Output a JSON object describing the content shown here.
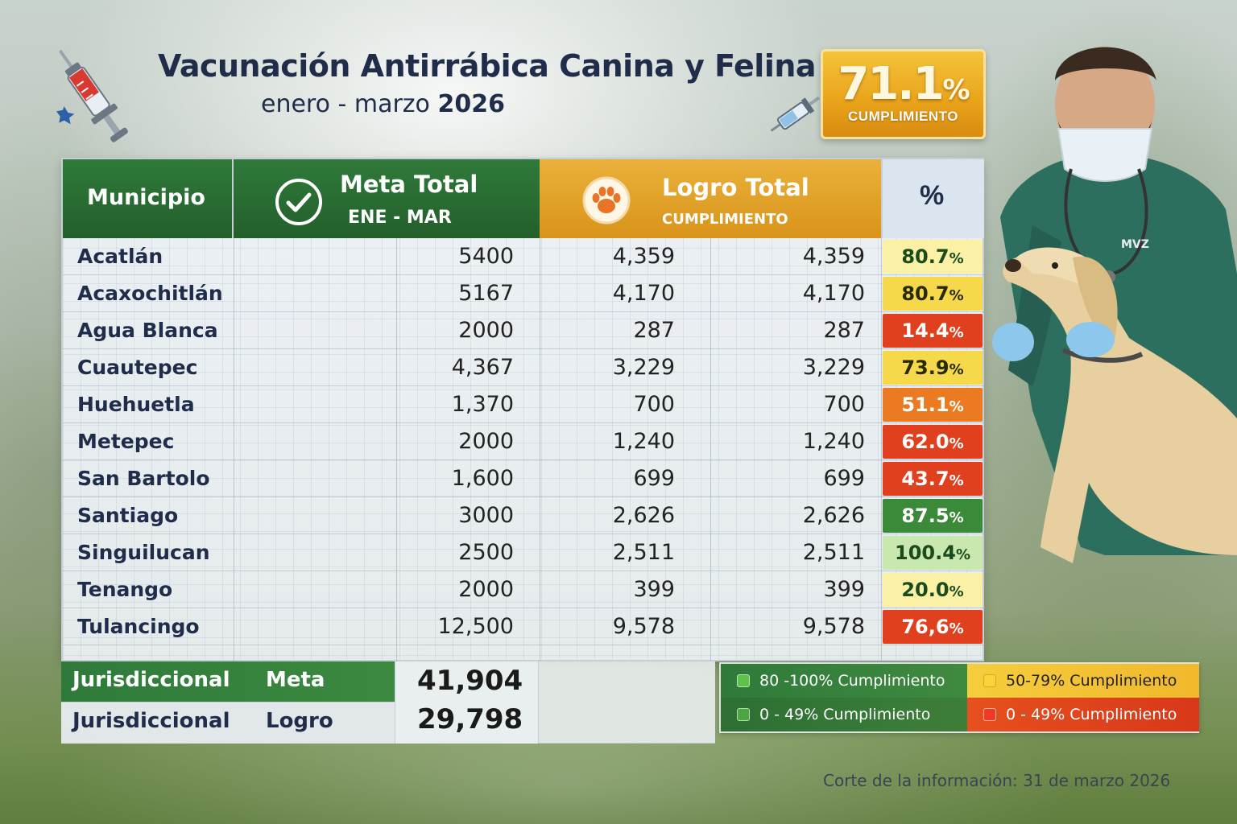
{
  "title": "Vacunación Antirrábica Canina y Felina",
  "subtitle_prefix": "enero - marzo",
  "subtitle_year": "2026",
  "kpi": {
    "value": "71.1",
    "unit": "%",
    "label": "CUMPLIMIENTO"
  },
  "headers": {
    "municipio": "Municipio",
    "meta_title": "Meta Total",
    "meta_sub": "ENE - MAR",
    "logro_title": "Logro Total",
    "logro_sub": "CUMPLIMIENTO",
    "pct": "%"
  },
  "rows": [
    {
      "municipio": "Acatlán",
      "meta": "5400",
      "logro_a": "4,359",
      "logro_b": "4,359",
      "pct": "80.7",
      "status": "light-yellow"
    },
    {
      "municipio": "Acaxochitlán",
      "meta": "5167",
      "logro_a": "4,170",
      "logro_b": "4,170",
      "pct": "80.7",
      "status": "yellow"
    },
    {
      "municipio": "Agua Blanca",
      "meta": "2000",
      "logro_a": "287",
      "logro_b": "287",
      "pct": "14.4",
      "status": "red"
    },
    {
      "municipio": "Cuautepec",
      "meta": "4,367",
      "logro_a": "3,229",
      "logro_b": "3,229",
      "pct": "73.9",
      "status": "yellow"
    },
    {
      "municipio": "Huehuetla",
      "meta": "1,370",
      "logro_a": "700",
      "logro_b": "700",
      "pct": "51.1",
      "status": "orange"
    },
    {
      "municipio": "Metepec",
      "meta": "2000",
      "logro_a": "1,240",
      "logro_b": "1,240",
      "pct": "62.0",
      "status": "red"
    },
    {
      "municipio": "San Bartolo",
      "meta": "1,600",
      "logro_a": "699",
      "logro_b": "699",
      "pct": "43.7",
      "status": "red"
    },
    {
      "municipio": "Santiago",
      "meta": "3000",
      "logro_a": "2,626",
      "logro_b": "2,626",
      "pct": "87.5",
      "status": "green"
    },
    {
      "municipio": "Singuilucan",
      "meta": "2500",
      "logro_a": "2,511",
      "logro_b": "2,511",
      "pct": "100.4",
      "status": "light-green"
    },
    {
      "municipio": "Tenango",
      "meta": "2000",
      "logro_a": "399",
      "logro_b": "399",
      "pct": "20.0",
      "status": "light-yellow"
    },
    {
      "municipio": "Tulancingo",
      "meta": "12,500",
      "logro_a": "9,578",
      "logro_b": "9,578",
      "pct": "76,6",
      "status": "red"
    }
  ],
  "pct_symbol": "%",
  "footer": {
    "meta_label": "Jurisdiccional",
    "meta_key": "Meta",
    "meta_value": "41,904",
    "logro_label": "Jurisdiccional",
    "logro_key": "Logro",
    "logro_value": "29,798"
  },
  "legend": [
    {
      "label": "80 -100% Cumplimiento",
      "color": "#4caf3f"
    },
    {
      "label": "50-79% Cumplimiento",
      "color": "#f2c230"
    },
    {
      "label": "0 - 49% Cumplimiento",
      "color": "#3f9a3a"
    },
    {
      "label": "0 - 49% Cumplimiento",
      "color": "#e53a1e"
    }
  ],
  "vet_badge": "MVZ",
  "source_note": "Corte de la información: 31 de marzo 2026",
  "colors": {
    "green-header": "#2f7a3a",
    "orange-header": "#e0a025",
    "green": "#3b8a3a",
    "light-green": "#c9e8b0",
    "yellow": "#f5d94a",
    "light-yellow": "#fbf1a6",
    "orange": "#ec7a22",
    "red": "#e0401e"
  },
  "chart_data": {
    "type": "table",
    "title": "Vacunación Antirrábica Canina y Felina",
    "subtitle": "enero - marzo 2026",
    "columns": [
      "Municipio",
      "Meta Total ENE - MAR",
      "Logro Total",
      "Logro Total",
      "%"
    ],
    "categories": [
      "Acatlán",
      "Acaxochitlán",
      "Agua Blanca",
      "Cuautepec",
      "Huehuetla",
      "Metepec",
      "San Bartolo",
      "Santiago",
      "Singuilucan",
      "Tenango",
      "Tulancingo"
    ],
    "series": [
      {
        "name": "Meta Total",
        "values": [
          5400,
          5167,
          2000,
          4367,
          1370,
          2000,
          1600,
          3000,
          2500,
          2000,
          12500
        ]
      },
      {
        "name": "Logro Total",
        "values": [
          4359,
          4170,
          287,
          3229,
          700,
          1240,
          699,
          2626,
          2511,
          399,
          9578
        ]
      },
      {
        "name": "%",
        "values": [
          80.7,
          80.7,
          14.4,
          73.9,
          51.1,
          62.0,
          43.7,
          87.5,
          100.4,
          20.0,
          76.6
        ]
      }
    ],
    "totals": {
      "Meta": 41904,
      "Logro": 29798,
      "Cumplimiento": 71.1
    }
  }
}
